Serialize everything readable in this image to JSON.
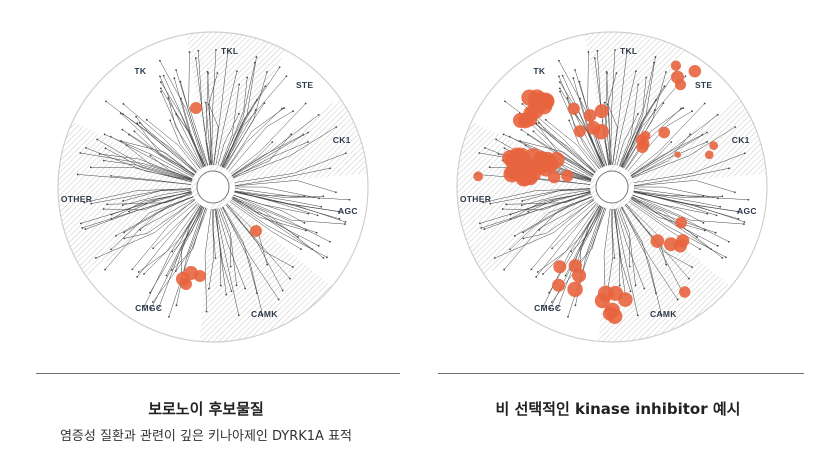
{
  "family_labels": {
    "tkl": "TKL",
    "ste": "STE",
    "ck1": "CK1",
    "agc": "AGC",
    "camk": "CAMK",
    "cmgc": "CMGC",
    "other": "OTHER",
    "tk": "TK"
  },
  "left": {
    "title": "보로노이 후보물질",
    "subtitle": "염증성 질환과 관련이 깊은 키나아제인 DYRK1A 표적"
  },
  "right": {
    "title": "비 선택적인 kinase inhibitor 예시"
  },
  "colors": {
    "hit": "#e8643e",
    "branch": "#444444",
    "hatch": "#c9c9c9",
    "circle": "#cfcfcf"
  }
}
